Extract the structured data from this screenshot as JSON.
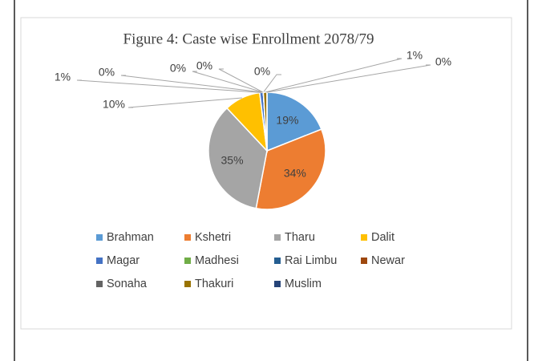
{
  "chart_data": {
    "type": "pie",
    "title": "Figure 4: Caste wise Enrollment 2078/79",
    "categories": [
      "Brahman",
      "Kshetri",
      "Tharu",
      "Dalit",
      "Magar",
      "Madhesi",
      "Rai Limbu",
      "Newar",
      "Sonaha",
      "Thakuri",
      "Muslim"
    ],
    "values": [
      19,
      34,
      35,
      10,
      1,
      0,
      0,
      0,
      0,
      1,
      0
    ],
    "value_labels": [
      "19%",
      "34%",
      "35%",
      "10%",
      "1%",
      "0%",
      "0%",
      "0%",
      "0%",
      "1%",
      "0%"
    ],
    "colors": [
      "#5b9bd5",
      "#ed7d31",
      "#a5a5a5",
      "#ffc000",
      "#4472c4",
      "#70ad47",
      "#255e91",
      "#9e480e",
      "#636363",
      "#997300",
      "#264478"
    ],
    "legend": "bottom"
  }
}
